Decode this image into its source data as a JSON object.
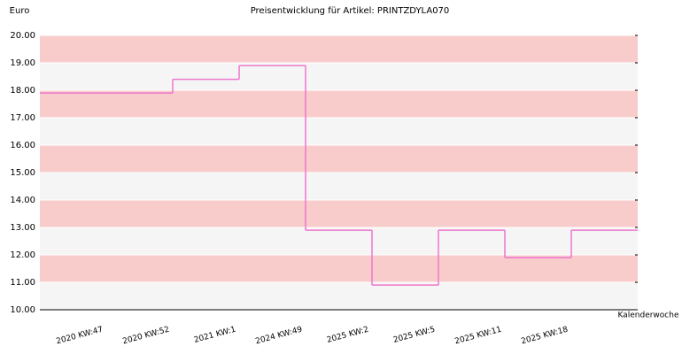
{
  "chart_data": {
    "type": "step",
    "title": "Preisentwicklung für Artikel: PRINTZDYLA070",
    "y_label": "Euro",
    "x_label": "Kalenderwoche",
    "categories": [
      "2020 KW:47",
      "2020 KW:52",
      "2021 KW:1",
      "2024 KW:49",
      "2025 KW:2",
      "2025 KW:5",
      "2025 KW:11",
      "2025 KW:18"
    ],
    "values": [
      17.9,
      18.4,
      18.9,
      12.9,
      10.9,
      12.9,
      11.9,
      12.9
    ],
    "color": "#ee77cc",
    "band_colors": [
      "#f5f5f5",
      "#f9cccc"
    ],
    "ylim": [
      10,
      20
    ],
    "yticks": [
      {
        "value": 10,
        "label": "10.00"
      },
      {
        "value": 11,
        "label": "11.00"
      },
      {
        "value": 12,
        "label": "12.00"
      },
      {
        "value": 13,
        "label": "13.00"
      },
      {
        "value": 14,
        "label": "14.00"
      },
      {
        "value": 15,
        "label": "15.00"
      },
      {
        "value": 16,
        "label": "16.00"
      },
      {
        "value": 17,
        "label": "17.00"
      },
      {
        "value": 18,
        "label": "18.00"
      },
      {
        "value": 19,
        "label": "19.00"
      },
      {
        "value": 20,
        "label": "20.00"
      }
    ],
    "grid": true
  }
}
